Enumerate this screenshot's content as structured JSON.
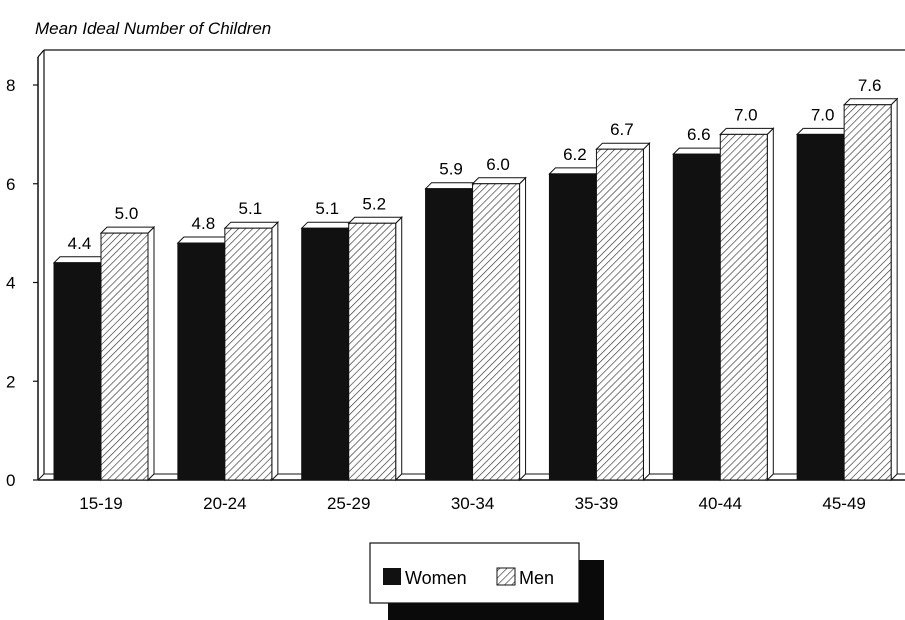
{
  "chart_data": {
    "type": "bar",
    "title": "",
    "ylabel": "Mean Ideal Number of Children",
    "xlabel": "",
    "categories": [
      "15-19",
      "20-24",
      "25-29",
      "30-34",
      "35-39",
      "40-44",
      "45-49"
    ],
    "series": [
      {
        "name": "Women",
        "values": [
          4.4,
          4.8,
          5.1,
          5.9,
          6.2,
          6.6,
          7.0
        ],
        "labels": [
          "4.4",
          "4.8",
          "5.1",
          "5.9",
          "6.2",
          "6.6",
          "7.0"
        ],
        "fill": "#111111"
      },
      {
        "name": "Men",
        "values": [
          5.0,
          5.1,
          5.2,
          6.0,
          6.7,
          7.0,
          7.6
        ],
        "labels": [
          "5.0",
          "5.1",
          "5.2",
          "6.0",
          "6.7",
          "7.0",
          "7.6"
        ],
        "fill": "hatched"
      }
    ],
    "ylim": [
      0,
      8
    ],
    "yticks": [
      "0",
      "2",
      "4",
      "6",
      "8"
    ],
    "grid": false,
    "legend": "bottom-center",
    "style": "3d-bars"
  }
}
